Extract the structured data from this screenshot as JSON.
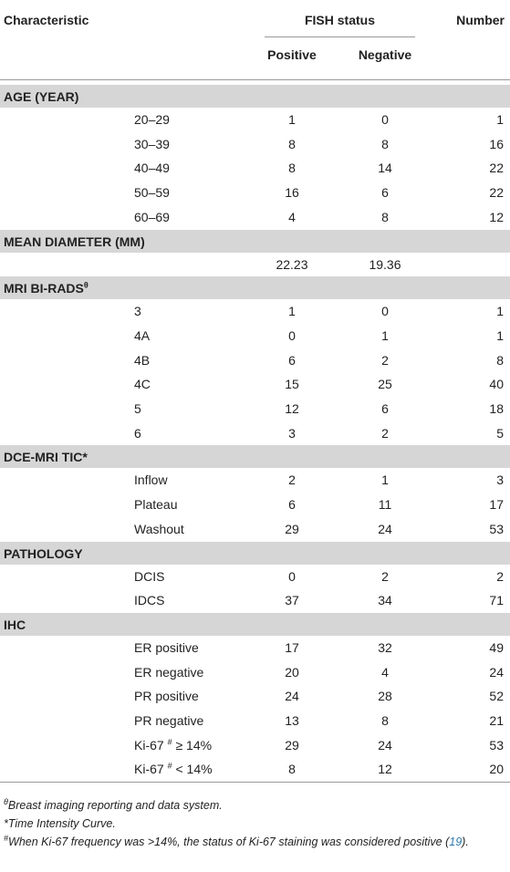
{
  "header": {
    "characteristic": "Characteristic",
    "group": "FISH status",
    "positive": "Positive",
    "negative": "Negative",
    "number": "Number"
  },
  "sections": [
    {
      "title": "AGE (YEAR)",
      "rows": [
        {
          "label": "20–29",
          "positive": 1,
          "negative": 0,
          "number": 1
        },
        {
          "label": "30–39",
          "positive": 8,
          "negative": 8,
          "number": 16
        },
        {
          "label": "40–49",
          "positive": 8,
          "negative": 14,
          "number": 22
        },
        {
          "label": "50–59",
          "positive": 16,
          "negative": 6,
          "number": 22
        },
        {
          "label": "60–69",
          "positive": 4,
          "negative": 8,
          "number": 12
        }
      ]
    },
    {
      "title": "MEAN DIAMETER (MM)",
      "rows": [
        {
          "label": null,
          "positive": 22.23,
          "negative": 19.36,
          "number": null
        }
      ]
    },
    {
      "title": "MRI BI-RADS",
      "title_sup": "θ",
      "rows": [
        {
          "label": "3",
          "positive": 1,
          "negative": 0,
          "number": 1
        },
        {
          "label": "4A",
          "positive": 0,
          "negative": 1,
          "number": 1
        },
        {
          "label": "4B",
          "positive": 6,
          "negative": 2,
          "number": 8
        },
        {
          "label": "4C",
          "positive": 15,
          "negative": 25,
          "number": 40
        },
        {
          "label": "5",
          "positive": 12,
          "negative": 6,
          "number": 18
        },
        {
          "label": "6",
          "positive": 3,
          "negative": 2,
          "number": 5
        }
      ]
    },
    {
      "title": "DCE-MRI TIC*",
      "rows": [
        {
          "label": "Inflow",
          "positive": 2,
          "negative": 1,
          "number": 3
        },
        {
          "label": "Plateau",
          "positive": 6,
          "negative": 11,
          "number": 17
        },
        {
          "label": "Washout",
          "positive": 29,
          "negative": 24,
          "number": 53
        }
      ]
    },
    {
      "title": "PATHOLOGY",
      "rows": [
        {
          "label": "DCIS",
          "positive": 0,
          "negative": 2,
          "number": 2
        },
        {
          "label": "IDCS",
          "positive": 37,
          "negative": 34,
          "number": 71
        }
      ]
    },
    {
      "title": "IHC",
      "rows": [
        {
          "label": "ER positive",
          "positive": 17,
          "negative": 32,
          "number": 49
        },
        {
          "label": "ER negative",
          "positive": 20,
          "negative": 4,
          "number": 24
        },
        {
          "label": "PR positive",
          "positive": 24,
          "negative": 28,
          "number": 52
        },
        {
          "label": "PR negative",
          "positive": 13,
          "negative": 8,
          "number": 21
        },
        {
          "label": "Ki-67",
          "label_sup": "#",
          "label_rest": "≥ 14%",
          "positive": 29,
          "negative": 24,
          "number": 53
        },
        {
          "label": "Ki-67",
          "label_sup": "#",
          "label_rest": "< 14%",
          "positive": 8,
          "negative": 12,
          "number": 20
        }
      ]
    }
  ],
  "footnotes": [
    {
      "sup": "θ",
      "text": "Breast imaging reporting and data system."
    },
    {
      "text": "*Time Intensity Curve."
    },
    {
      "sup": "#",
      "text": "When Ki-67 frequency was >14%, the status of Ki-67 staining was considered positive (",
      "ref": "19",
      "after": ")."
    }
  ]
}
